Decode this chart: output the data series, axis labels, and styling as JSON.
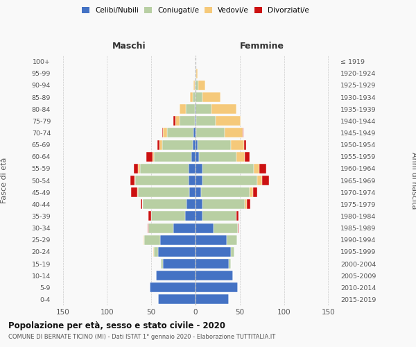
{
  "age_groups": [
    "0-4",
    "5-9",
    "10-14",
    "15-19",
    "20-24",
    "25-29",
    "30-34",
    "35-39",
    "40-44",
    "45-49",
    "50-54",
    "55-59",
    "60-64",
    "65-69",
    "70-74",
    "75-79",
    "80-84",
    "85-89",
    "90-94",
    "95-99",
    "100+"
  ],
  "birth_years": [
    "2015-2019",
    "2010-2014",
    "2005-2009",
    "2000-2004",
    "1995-1999",
    "1990-1994",
    "1985-1989",
    "1980-1984",
    "1975-1979",
    "1970-1974",
    "1965-1969",
    "1960-1964",
    "1955-1959",
    "1950-1954",
    "1945-1949",
    "1940-1944",
    "1935-1939",
    "1930-1934",
    "1925-1929",
    "1920-1924",
    "≤ 1919"
  ],
  "colors": {
    "celibi": "#4472c4",
    "coniugati": "#b8cfa3",
    "vedovi": "#f5c97a",
    "divorziati": "#cc1111"
  },
  "males": {
    "celibi": [
      42,
      52,
      45,
      37,
      42,
      40,
      25,
      12,
      10,
      7,
      8,
      8,
      5,
      3,
      2,
      1,
      1,
      0,
      0,
      0,
      0
    ],
    "coniugati": [
      0,
      0,
      0,
      2,
      5,
      18,
      28,
      38,
      50,
      58,
      60,
      55,
      42,
      35,
      30,
      17,
      10,
      3,
      1,
      0,
      0
    ],
    "vedovi": [
      0,
      0,
      0,
      0,
      1,
      1,
      0,
      0,
      0,
      1,
      1,
      2,
      2,
      3,
      5,
      5,
      7,
      3,
      1,
      0,
      0
    ],
    "divorziati": [
      0,
      0,
      0,
      0,
      0,
      0,
      1,
      3,
      2,
      7,
      5,
      5,
      7,
      2,
      1,
      2,
      0,
      0,
      0,
      0,
      0
    ]
  },
  "females": {
    "nubili": [
      38,
      48,
      42,
      38,
      40,
      35,
      20,
      8,
      8,
      6,
      8,
      8,
      4,
      2,
      1,
      1,
      0,
      0,
      0,
      0,
      0
    ],
    "coniugati": [
      0,
      0,
      0,
      2,
      4,
      12,
      28,
      38,
      48,
      55,
      62,
      58,
      42,
      38,
      32,
      22,
      18,
      8,
      3,
      1,
      0
    ],
    "vedovi": [
      0,
      0,
      0,
      0,
      0,
      0,
      0,
      0,
      2,
      4,
      5,
      6,
      10,
      15,
      20,
      28,
      28,
      20,
      8,
      1,
      0
    ],
    "divorziati": [
      0,
      0,
      0,
      0,
      0,
      0,
      1,
      3,
      4,
      5,
      8,
      8,
      5,
      2,
      1,
      0,
      0,
      0,
      0,
      0,
      0
    ]
  },
  "title": "Popolazione per età, sesso e stato civile - 2020",
  "subtitle": "COMUNE DI BERNATE TICINO (MI) - Dati ISTAT 1° gennaio 2020 - Elaborazione TUTTITALIA.IT",
  "xlabel_left": "Maschi",
  "xlabel_right": "Femmine",
  "ylabel_left": "Fasce di età",
  "ylabel_right": "Anni di nascita",
  "xlim": 160,
  "legend_labels": [
    "Celibi/Nubili",
    "Coniugati/e",
    "Vedovi/e",
    "Divorziati/e"
  ],
  "bg_color": "#f9f9f9",
  "grid_color": "#cccccc"
}
